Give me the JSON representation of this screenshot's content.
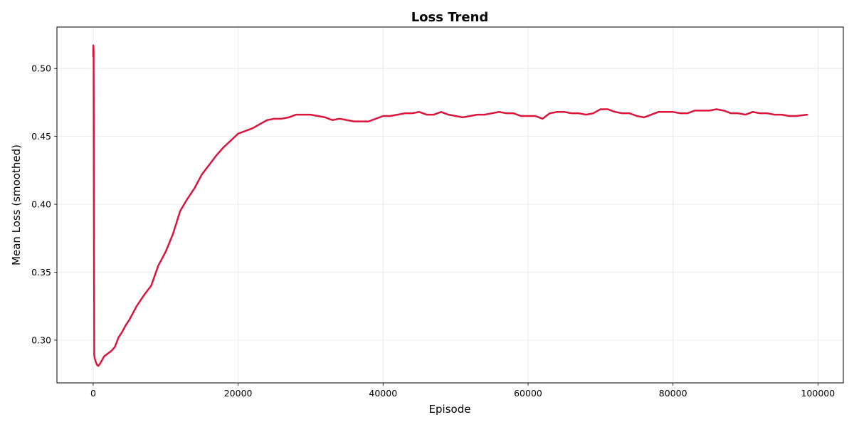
{
  "chart_data": {
    "type": "line",
    "title": "Loss Trend",
    "xlabel": "Episode",
    "ylabel": "Mean Loss (smoothed)",
    "xlim": [
      -5000,
      103500
    ],
    "ylim": [
      0.2685,
      0.5305
    ],
    "xticks": [
      0,
      20000,
      40000,
      60000,
      80000,
      100000
    ],
    "yticks": [
      0.3,
      0.35,
      0.4,
      0.45,
      0.5
    ],
    "xtick_labels": [
      "0",
      "20000",
      "40000",
      "60000",
      "80000",
      "100000"
    ],
    "ytick_labels": [
      "0.30",
      "0.35",
      "0.40",
      "0.45",
      "0.50"
    ],
    "grid": true,
    "series": [
      {
        "color": "#dc143c",
        "x": [
          0,
          20,
          60,
          100,
          150,
          200,
          300,
          500,
          700,
          1000,
          1500,
          2000,
          2500,
          3000,
          3500,
          4000,
          4500,
          5000,
          6000,
          7000,
          8000,
          9000,
          10000,
          11000,
          12000,
          13000,
          14000,
          15000,
          16000,
          17000,
          18000,
          19000,
          20000,
          21000,
          22000,
          23000,
          24000,
          25000,
          26000,
          27000,
          28000,
          29000,
          30000,
          31000,
          32000,
          33000,
          34000,
          35000,
          36000,
          37000,
          38000,
          39000,
          40000,
          41000,
          42000,
          43000,
          44000,
          45000,
          46000,
          47000,
          48000,
          49000,
          50000,
          51000,
          52000,
          53000,
          54000,
          55000,
          56000,
          57000,
          58000,
          59000,
          60000,
          61000,
          62000,
          63000,
          64000,
          65000,
          66000,
          67000,
          68000,
          69000,
          70000,
          71000,
          72000,
          73000,
          74000,
          75000,
          76000,
          77000,
          78000,
          79000,
          80000,
          81000,
          82000,
          83000,
          84000,
          85000,
          86000,
          87000,
          88000,
          89000,
          90000,
          91000,
          92000,
          93000,
          94000,
          95000,
          96000,
          97000,
          98500
        ],
        "y": [
          0.509,
          0.517,
          0.514,
          0.4,
          0.289,
          0.287,
          0.285,
          0.282,
          0.281,
          0.283,
          0.288,
          0.29,
          0.292,
          0.295,
          0.302,
          0.306,
          0.311,
          0.315,
          0.325,
          0.333,
          0.34,
          0.355,
          0.365,
          0.378,
          0.395,
          0.404,
          0.412,
          0.422,
          0.429,
          0.436,
          0.442,
          0.447,
          0.452,
          0.454,
          0.456,
          0.459,
          0.462,
          0.463,
          0.463,
          0.464,
          0.466,
          0.466,
          0.466,
          0.465,
          0.464,
          0.462,
          0.463,
          0.462,
          0.461,
          0.461,
          0.461,
          0.463,
          0.465,
          0.465,
          0.466,
          0.467,
          0.467,
          0.468,
          0.466,
          0.466,
          0.468,
          0.466,
          0.465,
          0.464,
          0.465,
          0.466,
          0.466,
          0.467,
          0.468,
          0.467,
          0.467,
          0.465,
          0.465,
          0.465,
          0.463,
          0.467,
          0.468,
          0.468,
          0.467,
          0.467,
          0.466,
          0.467,
          0.47,
          0.47,
          0.468,
          0.467,
          0.467,
          0.465,
          0.464,
          0.466,
          0.468,
          0.468,
          0.468,
          0.467,
          0.467,
          0.469,
          0.469,
          0.469,
          0.47,
          0.469,
          0.467,
          0.467,
          0.466,
          0.468,
          0.467,
          0.467,
          0.466,
          0.466,
          0.465,
          0.465,
          0.466
        ]
      }
    ]
  }
}
